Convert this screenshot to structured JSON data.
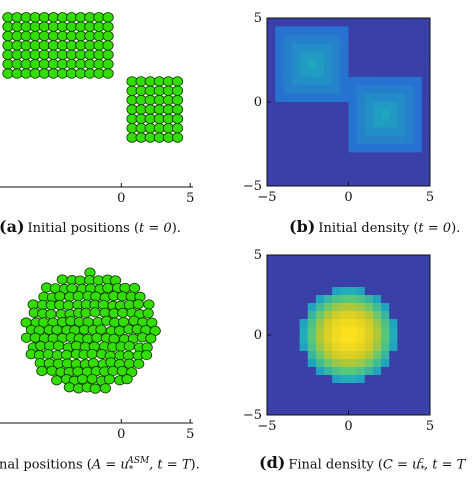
{
  "panels": {
    "a": {
      "label": "(a)",
      "caption_text": "Initial positions (",
      "caption_math": "t = 0",
      "caption_end": ")."
    },
    "b": {
      "label": "(b)",
      "caption_text": "Initial density (",
      "caption_math": "t = 0",
      "caption_end": ")."
    },
    "c": {
      "caption_text": "nal positions (",
      "caption_math": "A = u",
      "caption_sup": "ASM",
      "caption_sub": "*",
      "caption_math2": ", t = T",
      "caption_end": ")."
    },
    "d": {
      "label": "(d)",
      "caption_text": "Final density (",
      "caption_math": "C = u",
      "caption_sup": "c",
      "caption_sub": "*",
      "caption_math2": ", t = T"
    }
  },
  "chart_data": [
    {
      "panel": "a",
      "type": "scatter",
      "title": "",
      "xlabel": "",
      "ylabel": "",
      "x_ticks": [
        "0",
        "5"
      ],
      "xlim": [
        -8.8,
        5.2
      ],
      "ylim": [
        -5.3,
        5.5
      ],
      "particle_color": "#33dd00",
      "particle_edge": "#0d3300",
      "groups": [
        {
          "name": "",
          "x_range": [
            -8.6,
            -0.3
          ],
          "y_range": [
            0.6,
            4.8
          ]
        },
        {
          "name": "",
          "x_range": [
            0.4,
            4.6
          ],
          "y_range": [
            -3.0,
            1.1
          ]
        }
      ]
    },
    {
      "panel": "b",
      "type": "heatmap",
      "title": "",
      "xlabel": "",
      "ylabel": "",
      "x_ticks": [
        "−5",
        "0",
        "5"
      ],
      "y_ticks": [
        "−5",
        "0",
        "5"
      ],
      "xlim": [
        -5,
        5
      ],
      "ylim": [
        -5,
        5
      ],
      "grid_size": 20,
      "background_color": "#3b3fa8",
      "blobs": [
        {
          "cx": -2.2,
          "cy": 2.2,
          "half_width": 2.2,
          "peak": 0.45
        },
        {
          "cx": 2.2,
          "cy": -0.8,
          "half_width": 2.2,
          "peak": 0.45
        }
      ]
    },
    {
      "panel": "c",
      "type": "scatter",
      "title": "",
      "xlabel": "",
      "ylabel": "",
      "x_ticks": [
        "0",
        "5"
      ],
      "xlim": [
        -8.8,
        5.2
      ],
      "ylim": [
        -5.3,
        5.5
      ],
      "particle_color": "#33dd00",
      "particle_edge": "#0d3300",
      "cluster": {
        "cx": -2.2,
        "cy": 0.0,
        "radius": 2.8
      }
    },
    {
      "panel": "d",
      "type": "heatmap",
      "title": "",
      "xlabel": "",
      "ylabel": "",
      "x_ticks": [
        "−5",
        "0",
        "5"
      ],
      "y_ticks": [
        "−5",
        "0",
        "5"
      ],
      "xlim": [
        -5,
        5
      ],
      "ylim": [
        -5,
        5
      ],
      "grid_size": 20,
      "background_color": "#3b3fa8",
      "blobs": [
        {
          "cx": 0.0,
          "cy": 0.0,
          "half_width": 2.8,
          "peak": 1.0
        }
      ]
    }
  ]
}
